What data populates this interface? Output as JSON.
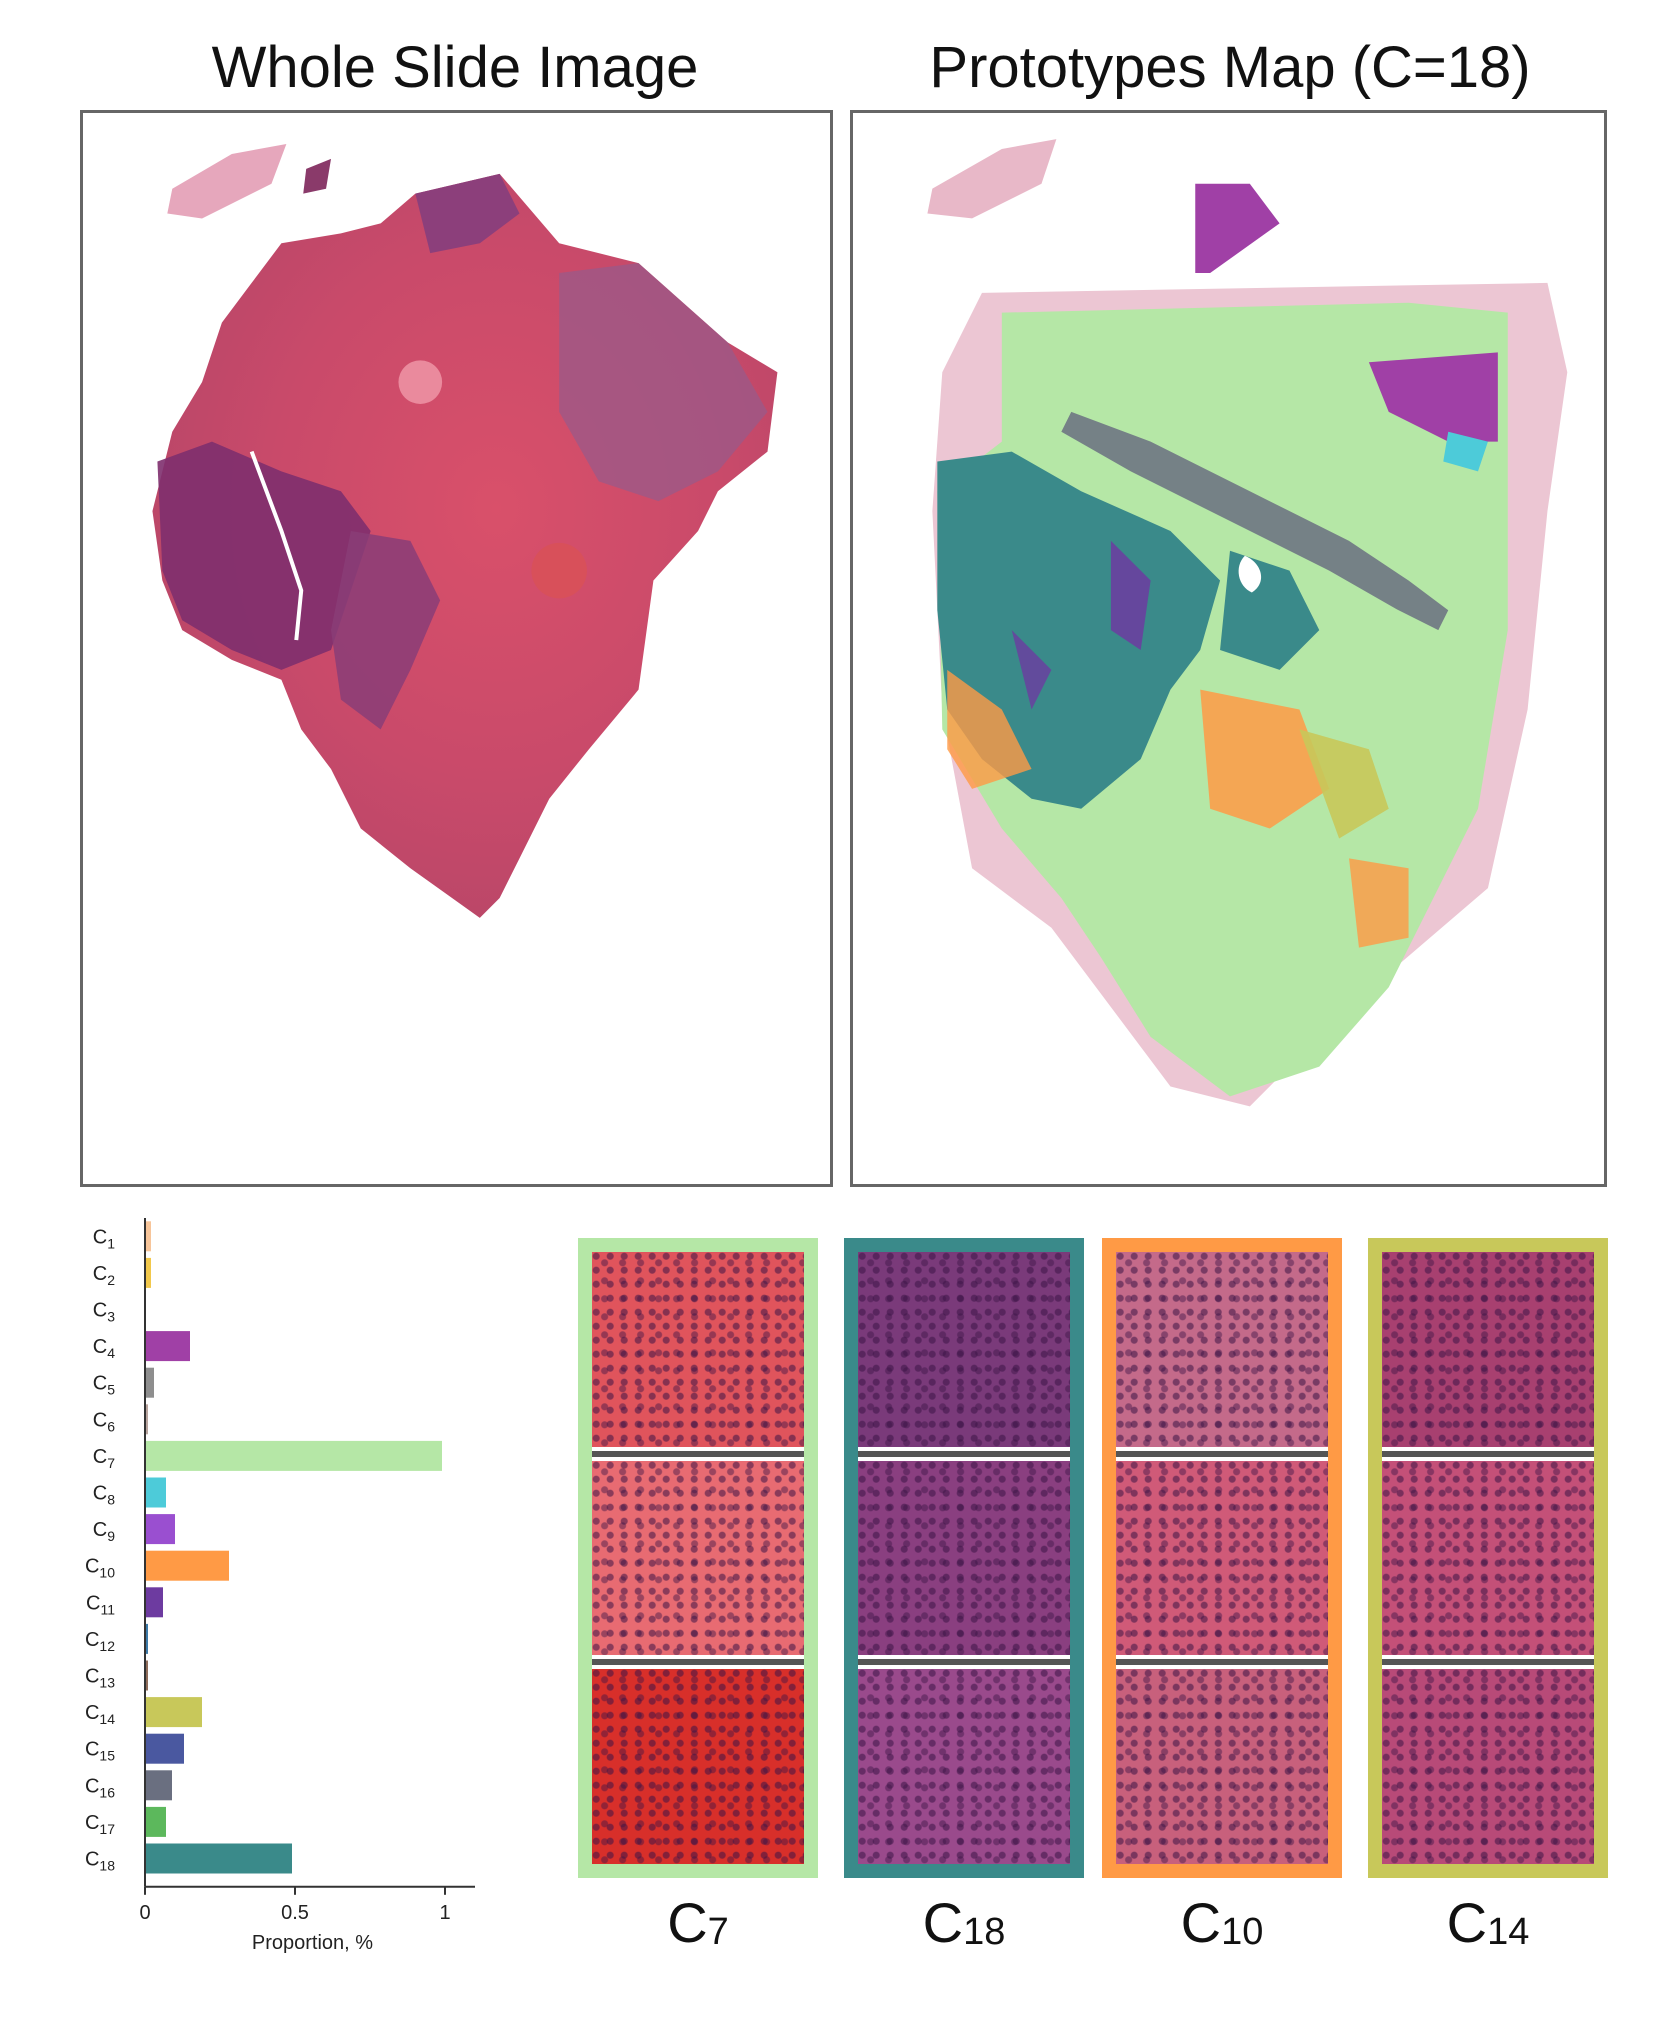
{
  "titles": {
    "left": "Whole Slide Image",
    "right": "Prototypes Map (C=18)"
  },
  "chart_data": {
    "type": "bar",
    "orientation": "horizontal",
    "categories": [
      "C1",
      "C2",
      "C3",
      "C4",
      "C5",
      "C6",
      "C7",
      "C8",
      "C9",
      "C10",
      "C11",
      "C12",
      "C13",
      "C14",
      "C15",
      "C16",
      "C17",
      "C18"
    ],
    "category_main": "C",
    "category_subs": [
      "1",
      "2",
      "3",
      "4",
      "5",
      "6",
      "7",
      "8",
      "9",
      "10",
      "11",
      "12",
      "13",
      "14",
      "15",
      "16",
      "17",
      "18"
    ],
    "values": [
      0.02,
      0.02,
      0.0,
      0.15,
      0.03,
      0.01,
      0.99,
      0.07,
      0.1,
      0.28,
      0.06,
      0.01,
      0.01,
      0.19,
      0.13,
      0.09,
      0.07,
      0.49
    ],
    "colors": [
      "#f7c59a",
      "#f2c84b",
      "#bbbbbb",
      "#a040a6",
      "#8e8e8e",
      "#b8a49e",
      "#b5e7a6",
      "#4dcbd9",
      "#9a4fd0",
      "#ff9a45",
      "#6d3ba0",
      "#3c7aa8",
      "#8f6c5a",
      "#c8c85a",
      "#4a58a0",
      "#6a6f80",
      "#5cb85c",
      "#3a8a8a"
    ],
    "xlabel": "Proportion, %",
    "xticks": [
      "0",
      "0.5",
      "1"
    ],
    "xtick_values": [
      0,
      0.5,
      1
    ],
    "xlim": [
      0,
      1.05
    ]
  },
  "prototypes": [
    {
      "main": "C",
      "sub": "7",
      "color": "#b5e7a6",
      "tiles": [
        "#e0545c",
        "#e86b72",
        "#d82f2a"
      ]
    },
    {
      "main": "C",
      "sub": "18",
      "color": "#3a8a8a",
      "tiles": [
        "#7a3a7a",
        "#8a3f80",
        "#9a4a8c"
      ]
    },
    {
      "main": "C",
      "sub": "10",
      "color": "#ff9a45",
      "tiles": [
        "#c46a8a",
        "#d05a78",
        "#c8607c"
      ]
    },
    {
      "main": "C",
      "sub": "14",
      "color": "#c8c85a",
      "tiles": [
        "#a84070",
        "#c45078",
        "#b84a78"
      ]
    }
  ]
}
